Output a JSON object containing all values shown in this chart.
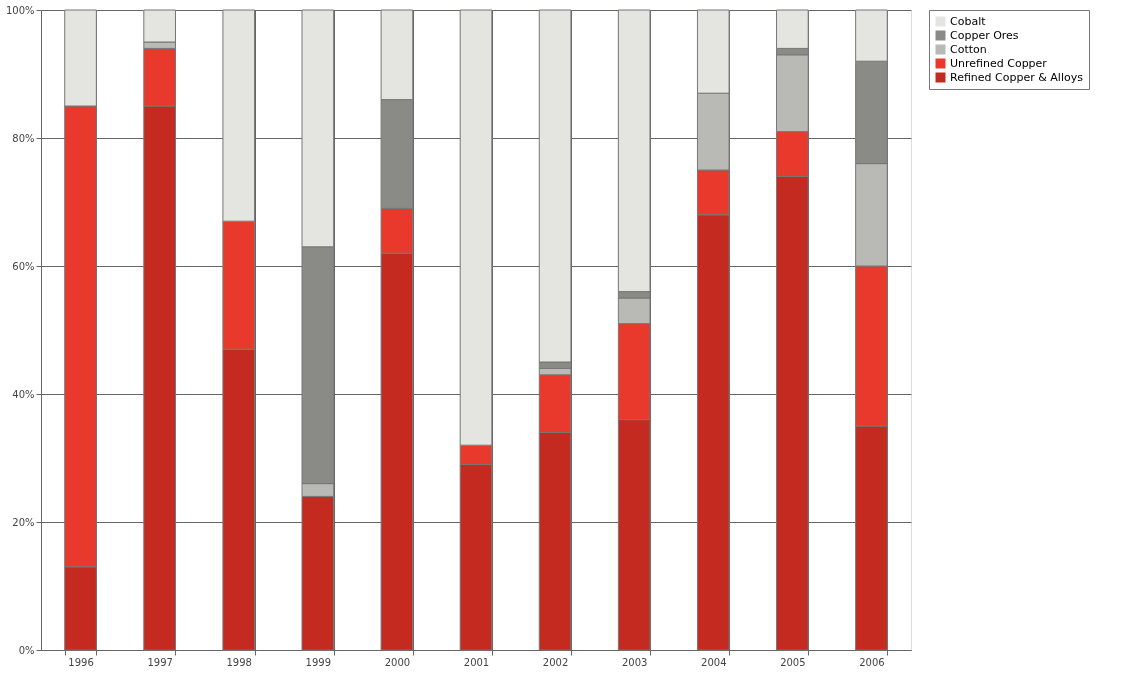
{
  "chart_data": {
    "type": "bar",
    "stacked": true,
    "categories": [
      "1996",
      "1997",
      "1998",
      "1999",
      "2000",
      "2001",
      "2002",
      "2003",
      "2004",
      "2005",
      "2006"
    ],
    "series": [
      {
        "name": "Refined Copper & Alloys",
        "color": "#c42a20",
        "values": [
          13,
          85,
          47,
          24,
          62,
          29,
          34,
          36,
          68,
          74,
          35
        ]
      },
      {
        "name": "Unrefined Copper",
        "color": "#e8392c",
        "values": [
          72,
          9,
          20,
          0,
          7,
          3,
          9,
          15,
          7,
          7,
          25
        ]
      },
      {
        "name": "Cotton",
        "color": "#b9b9b5",
        "values": [
          0,
          1,
          0,
          2,
          0,
          0,
          1,
          4,
          12,
          12,
          16
        ]
      },
      {
        "name": "Copper Ores",
        "color": "#8a8a87",
        "values": [
          0,
          0,
          0,
          37,
          17,
          0,
          1,
          1,
          0,
          1,
          16
        ]
      },
      {
        "name": "Cobalt",
        "color": "#e4e4e0",
        "values": [
          15,
          5,
          33,
          37,
          14,
          68,
          55,
          44,
          13,
          6,
          8
        ]
      }
    ],
    "ylim": [
      0,
      100
    ],
    "yticks": [
      {
        "value": 0,
        "label": "0%"
      },
      {
        "value": 20,
        "label": "20%"
      },
      {
        "value": 40,
        "label": "40%"
      },
      {
        "value": 60,
        "label": "60%"
      },
      {
        "value": 80,
        "label": "80%"
      },
      {
        "value": 100,
        "label": "100%"
      }
    ],
    "grid": true,
    "legend": "right"
  }
}
